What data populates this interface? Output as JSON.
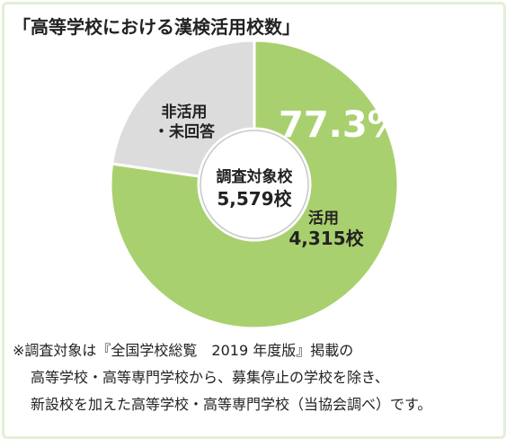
{
  "chart_data": {
    "type": "donut",
    "title": "「高等学校における漢検活用校数」",
    "categories": [
      "活用",
      "非活用\n・未回答"
    ],
    "values": [
      77.3,
      22.7
    ],
    "value_labels": [
      "77.3%",
      null
    ],
    "colors": [
      "#a9d06e",
      "#dcdcdc"
    ],
    "segment_counts": [
      {
        "value": 4315,
        "label": "4,315校"
      },
      null
    ],
    "center_title": "調査対象校",
    "total": {
      "value": 5579,
      "label": "5,579校"
    },
    "note": [
      "※調査対象は『全国学校総覧　2019 年度版』掲載の",
      "高等学校・高等専門学校から、募集停止の学校を除き、",
      "新設校を加えた高等学校・高等専門学校（当協会調べ）です。"
    ]
  }
}
